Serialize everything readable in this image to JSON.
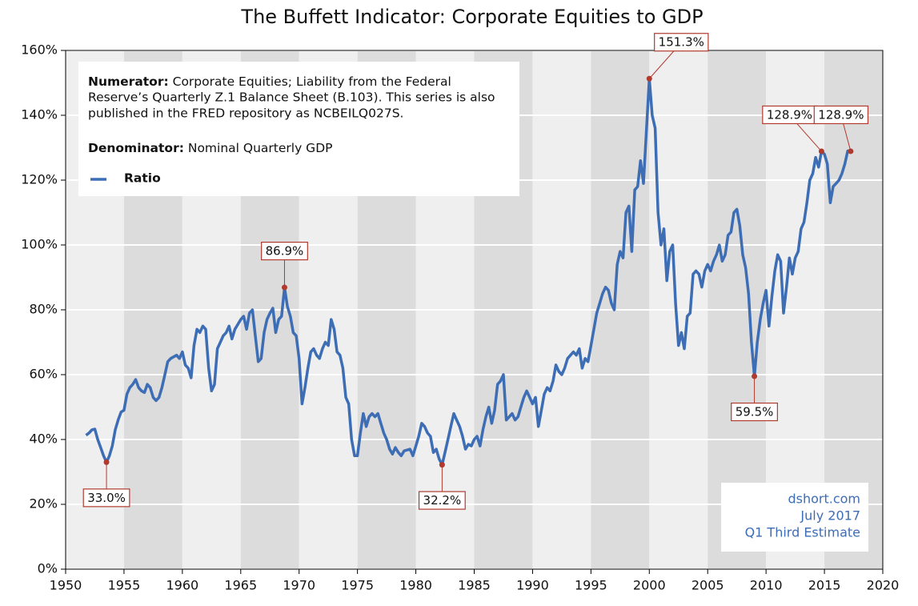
{
  "chart_data": {
    "type": "line",
    "title": "The Buffett Indicator: Corporate Equities to GDP",
    "xlim": [
      1950,
      2020
    ],
    "xticks": [
      1950,
      1955,
      1960,
      1965,
      1970,
      1975,
      1980,
      1985,
      1990,
      1995,
      2000,
      2005,
      2010,
      2015,
      2020
    ],
    "ylim": [
      0,
      160
    ],
    "yticks": [
      {
        "value": 0,
        "label": "0%"
      },
      {
        "value": 20,
        "label": "20%"
      },
      {
        "value": 40,
        "label": "40%"
      },
      {
        "value": 60,
        "label": "60%"
      },
      {
        "value": 80,
        "label": "80%"
      },
      {
        "value": 100,
        "label": "100%"
      },
      {
        "value": 120,
        "label": "120%"
      },
      {
        "value": 140,
        "label": "140%"
      },
      {
        "value": 160,
        "label": "160%"
      }
    ],
    "grid": true,
    "x": [
      1951.75,
      1952.0,
      1952.25,
      1952.5,
      1952.75,
      1953.0,
      1953.25,
      1953.5,
      1953.75,
      1954.0,
      1954.25,
      1954.5,
      1954.75,
      1955.0,
      1955.25,
      1955.5,
      1955.75,
      1956.0,
      1956.25,
      1956.5,
      1956.75,
      1957.0,
      1957.25,
      1957.5,
      1957.75,
      1958.0,
      1958.25,
      1958.5,
      1958.75,
      1959.0,
      1959.5,
      1959.75,
      1960.0,
      1960.25,
      1960.5,
      1960.75,
      1961.0,
      1961.25,
      1961.5,
      1961.75,
      1962.0,
      1962.25,
      1962.5,
      1962.75,
      1963.0,
      1963.25,
      1963.5,
      1963.75,
      1964.0,
      1964.25,
      1964.5,
      1965.0,
      1965.25,
      1965.5,
      1965.75,
      1966.0,
      1966.25,
      1966.5,
      1966.75,
      1967.0,
      1967.25,
      1967.5,
      1967.75,
      1968.0,
      1968.25,
      1968.5,
      1968.75,
      1969.0,
      1969.25,
      1969.5,
      1969.75,
      1970.0,
      1970.25,
      1970.5,
      1970.75,
      1971.0,
      1971.25,
      1971.5,
      1971.75,
      1972.0,
      1972.25,
      1972.5,
      1972.75,
      1973.0,
      1973.25,
      1973.5,
      1973.75,
      1974.0,
      1974.25,
      1974.5,
      1974.75,
      1975.0,
      1975.25,
      1975.5,
      1975.75,
      1976.0,
      1976.25,
      1976.5,
      1976.75,
      1977.0,
      1977.25,
      1977.5,
      1977.75,
      1978.0,
      1978.25,
      1978.5,
      1978.75,
      1979.0,
      1979.5,
      1979.75,
      1980.0,
      1980.25,
      1980.5,
      1980.75,
      1981.0,
      1981.25,
      1981.5,
      1981.75,
      1982.0,
      1982.25,
      1982.5,
      1982.75,
      1983.0,
      1983.25,
      1983.5,
      1983.75,
      1984.0,
      1984.25,
      1984.5,
      1984.75,
      1985.0,
      1985.25,
      1985.5,
      1985.75,
      1986.0,
      1986.25,
      1986.5,
      1986.75,
      1987.0,
      1987.25,
      1987.5,
      1987.75,
      1988.0,
      1988.25,
      1988.5,
      1988.75,
      1989.0,
      1989.25,
      1989.5,
      1989.75,
      1990.0,
      1990.25,
      1990.5,
      1990.75,
      1991.0,
      1991.25,
      1991.5,
      1991.75,
      1992.0,
      1992.25,
      1992.5,
      1992.75,
      1993.0,
      1993.25,
      1993.5,
      1993.75,
      1994.0,
      1994.25,
      1994.5,
      1994.75,
      1995.0,
      1995.25,
      1995.5,
      1995.75,
      1996.0,
      1996.25,
      1996.5,
      1996.75,
      1997.0,
      1997.25,
      1997.5,
      1997.75,
      1998.0,
      1998.25,
      1998.5,
      1998.75,
      1999.0,
      1999.25,
      1999.5,
      1999.75,
      2000.0,
      2000.25,
      2000.5,
      2000.75,
      2001.0,
      2001.25,
      2001.5,
      2001.75,
      2002.0,
      2002.25,
      2002.5,
      2002.75,
      2003.0,
      2003.25,
      2003.5,
      2003.75,
      2004.0,
      2004.25,
      2004.5,
      2004.75,
      2005.0,
      2005.25,
      2005.5,
      2005.75,
      2006.0,
      2006.25,
      2006.5,
      2006.75,
      2007.0,
      2007.25,
      2007.5,
      2007.75,
      2008.0,
      2008.25,
      2008.5,
      2008.75,
      2009.0,
      2009.25,
      2009.5,
      2009.75,
      2010.0,
      2010.25,
      2010.5,
      2010.75,
      2011.0,
      2011.25,
      2011.5,
      2011.75,
      2012.0,
      2012.25,
      2012.5,
      2012.75,
      2013.0,
      2013.25,
      2013.5,
      2013.75,
      2014.0,
      2014.25,
      2014.5,
      2014.75,
      2015.0,
      2015.25,
      2015.5,
      2015.75,
      2016.0,
      2016.25,
      2016.5,
      2016.75,
      2017.0,
      2017.25
    ],
    "series": [
      {
        "name": "Ratio",
        "color": "#3d6db5",
        "values": [
          41.3,
          42,
          43,
          43.2,
          40,
          37.5,
          35,
          33.0,
          35,
          38,
          43,
          46,
          48.5,
          49,
          54,
          56,
          57,
          58.5,
          56,
          55,
          54.5,
          57,
          56,
          53,
          52,
          53,
          56,
          60,
          64,
          65,
          66,
          65,
          67,
          63,
          62,
          59,
          69,
          74,
          73,
          75,
          74,
          62,
          55,
          57,
          68,
          70,
          72,
          73,
          75,
          71,
          74,
          77,
          78,
          74,
          79,
          80,
          72,
          64,
          65,
          73,
          77,
          79,
          80.5,
          73,
          77,
          78,
          86.9,
          81,
          78,
          73,
          72,
          65,
          51,
          56,
          62,
          67,
          68,
          66,
          65,
          68,
          70,
          69,
          77,
          74,
          67,
          66,
          62,
          53,
          51,
          40,
          35,
          35,
          42,
          48,
          44,
          47,
          48,
          47,
          48,
          45,
          42,
          40,
          37,
          35.5,
          37.5,
          36,
          35,
          36.5,
          37,
          35,
          38,
          41,
          45,
          44,
          42,
          41,
          36,
          37,
          34,
          32.2,
          36,
          40,
          44,
          48,
          46,
          44,
          41,
          37,
          38.5,
          38,
          40,
          41,
          38,
          43,
          47,
          50,
          45,
          49,
          57,
          58,
          60,
          46,
          47,
          48,
          46,
          47,
          50,
          53,
          55,
          53,
          51,
          53,
          44,
          49,
          54,
          56,
          55,
          58,
          63,
          61,
          60,
          62,
          65,
          66,
          67,
          66,
          68,
          62,
          65,
          64,
          69,
          74,
          79,
          82,
          85,
          87,
          86,
          82,
          80,
          94,
          98,
          96,
          110,
          112,
          98,
          117,
          118,
          126,
          119,
          135,
          151.3,
          140,
          136,
          110,
          100,
          105,
          89,
          98,
          100,
          82,
          69,
          73,
          68,
          78,
          79,
          91,
          92,
          91,
          87,
          92,
          94,
          92,
          95,
          97,
          100,
          95,
          97,
          103,
          104,
          110,
          111,
          106,
          97,
          93,
          85,
          70,
          59.5,
          70,
          77,
          82,
          86,
          75,
          84,
          92,
          97,
          95,
          79,
          87,
          96,
          91,
          96,
          98,
          105,
          107,
          113,
          120,
          122,
          127,
          124,
          128.9,
          128,
          125,
          113,
          118,
          119,
          120,
          122,
          125,
          129,
          128.9
        ]
      }
    ],
    "annotations": [
      {
        "x": 1953.5,
        "value": 33.0,
        "label": "33.0%"
      },
      {
        "x": 1968.75,
        "value": 86.9,
        "label": "86.9%"
      },
      {
        "x": 1982.25,
        "value": 32.2,
        "label": "32.2%"
      },
      {
        "x": 2000.0,
        "value": 151.3,
        "label": "151.3%"
      },
      {
        "x": 2009.0,
        "value": 59.5,
        "label": "59.5%"
      },
      {
        "x": 2014.75,
        "value": 128.9,
        "label": "128.9%"
      },
      {
        "x": 2017.25,
        "value": 128.9,
        "label": "128.9%"
      }
    ],
    "note": {
      "numerator_label": "Numerator:",
      "numerator_lines": [
        "Corporate Equities; Liability from the Federal",
        "Reserve’s Quarterly Z.1 Balance Sheet (B.103). This series is also",
        "published in the FRED repository as NCBEILQ027S."
      ],
      "denominator_label": "Denominator:",
      "denominator_text": "Nominal Quarterly GDP"
    },
    "source": [
      "dshort.com",
      "July 2017",
      "Q1 Third Estimate"
    ]
  }
}
